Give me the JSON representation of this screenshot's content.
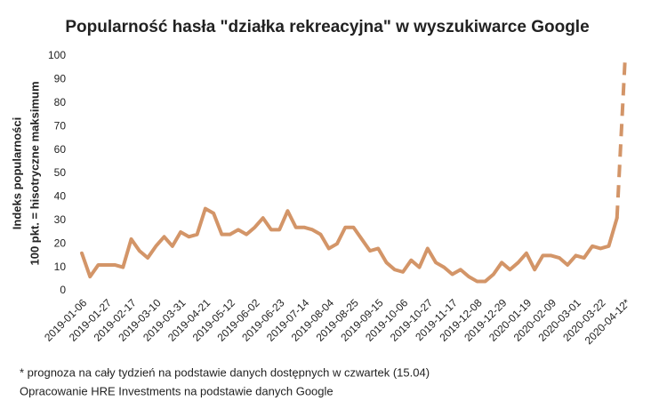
{
  "chart_data": {
    "type": "line",
    "title": "Popularność hasła \"działka rekreacyjna\" w wyszukiwarce Google",
    "ylabel": [
      "Indeks popularności",
      "100 pkt. = hisotryczne maksimum"
    ],
    "footnotes": [
      "* prognoza na cały tydzień na podstawie danych dostępnych w czwartek (15.04)",
      "Opracowanie HRE Investments na podstawie danych Google"
    ],
    "categories": [
      "2019-01-06",
      null,
      null,
      "2019-01-27",
      null,
      null,
      "2019-02-17",
      null,
      null,
      "2019-03-10",
      null,
      null,
      "2019-03-31",
      null,
      null,
      "2019-04-21",
      null,
      null,
      "2019-05-12",
      null,
      null,
      "2019-06-02",
      null,
      null,
      "2019-06-23",
      null,
      null,
      "2019-07-14",
      null,
      null,
      "2019-08-04",
      null,
      null,
      "2019-08-25",
      null,
      null,
      "2019-09-15",
      null,
      null,
      "2019-10-06",
      null,
      null,
      "2019-10-27",
      null,
      null,
      "2019-11-17",
      null,
      null,
      "2019-12-08",
      null,
      null,
      "2019-12-29",
      null,
      null,
      "2020-01-19",
      null,
      null,
      "2020-02-09",
      null,
      null,
      "2020-03-01",
      null,
      null,
      "2020-03-22",
      null,
      null,
      "2020-04-12*"
    ],
    "values": [
      16,
      6,
      11,
      11,
      11,
      10,
      22,
      17,
      14,
      19,
      23,
      19,
      25,
      23,
      24,
      35,
      33,
      24,
      24,
      26,
      24,
      27,
      31,
      26,
      26,
      34,
      27,
      27,
      26,
      24,
      18,
      20,
      27,
      27,
      22,
      17,
      18,
      12,
      9,
      8,
      13,
      10,
      18,
      12,
      10,
      7,
      9,
      6,
      4,
      4,
      7,
      12,
      9,
      12,
      16,
      9,
      15,
      15,
      14,
      11,
      15,
      14,
      19,
      18,
      19,
      31,
      100
    ],
    "color": "#d39568",
    "last_segment_dashed": true,
    "ylim": [
      0,
      100
    ],
    "yticks": [
      0,
      10,
      20,
      30,
      40,
      50,
      60,
      70,
      80,
      90,
      100
    ],
    "grid": false
  }
}
